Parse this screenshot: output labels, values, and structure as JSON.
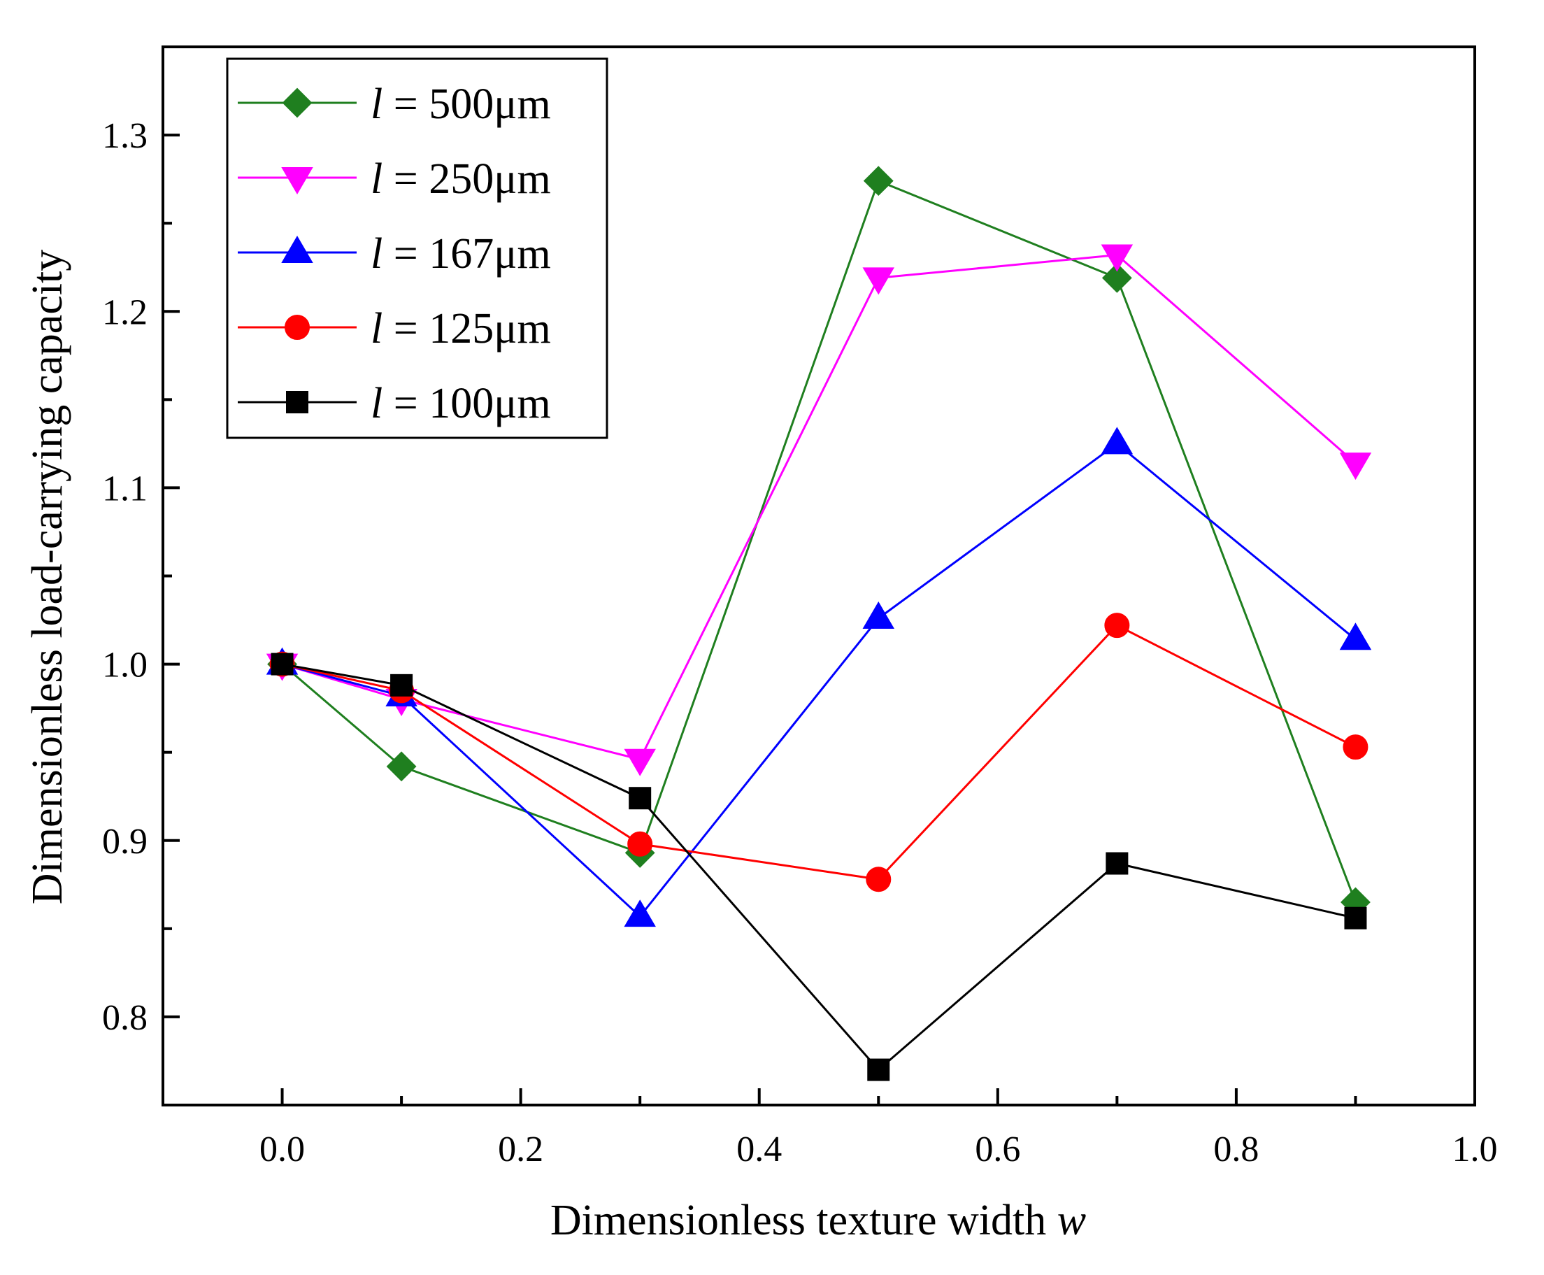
{
  "chart_data": {
    "type": "line",
    "xlabel": "Dimensionless texture width",
    "xlabel_var": "w",
    "ylabel": "Dimensionless load-carrying capacity",
    "xlim": [
      -0.1,
      1.0
    ],
    "ylim": [
      0.75,
      1.35
    ],
    "xticks": [
      "0.0",
      "0.2",
      "0.4",
      "0.6",
      "0.8",
      "1.0"
    ],
    "yticks": [
      "0.8",
      "0.9",
      "1.0",
      "1.1",
      "1.2",
      "1.3"
    ],
    "grid": false,
    "legend_position": "top-left",
    "x": [
      0.0,
      0.1,
      0.3,
      0.5,
      0.7,
      0.9
    ],
    "series": [
      {
        "name": "l",
        "value_label": " = 500μm",
        "color": "#1f7f1f",
        "marker": "diamond",
        "values": [
          1.0,
          0.942,
          0.893,
          1.274,
          1.219,
          0.865
        ]
      },
      {
        "name": "l",
        "value_label": " = 250μm",
        "color": "#ff00ff",
        "marker": "triangle-down",
        "values": [
          1.0,
          0.98,
          0.946,
          1.219,
          1.232,
          1.114
        ]
      },
      {
        "name": "l",
        "value_label": " = 167μm",
        "color": "#0000ff",
        "marker": "triangle-up",
        "values": [
          1.0,
          0.982,
          0.857,
          1.026,
          1.125,
          1.014
        ]
      },
      {
        "name": "l",
        "value_label": " = 125μm",
        "color": "#ff0000",
        "marker": "circle",
        "values": [
          1.0,
          0.985,
          0.898,
          0.878,
          1.022,
          0.953
        ]
      },
      {
        "name": "l",
        "value_label": " = 100μm",
        "color": "#000000",
        "marker": "square",
        "values": [
          1.0,
          0.988,
          0.924,
          0.77,
          0.887,
          0.856
        ]
      }
    ]
  }
}
